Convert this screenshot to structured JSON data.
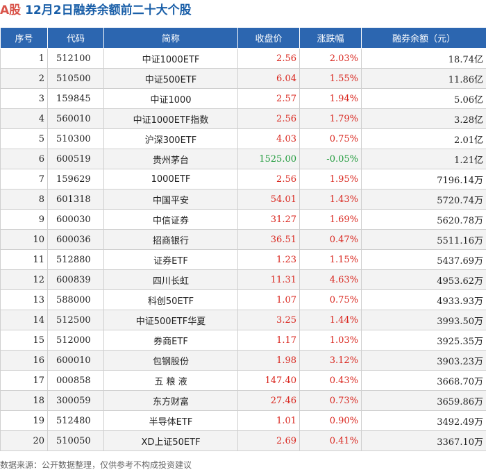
{
  "header": {
    "prefix": "A股",
    "title": "12月2日融券余额前二十大个股"
  },
  "columns": [
    "序号",
    "代码",
    "简称",
    "收盘价",
    "涨跌幅",
    "融券余额（元）"
  ],
  "rows": [
    {
      "idx": "1",
      "code": "512100",
      "name": "中证1000ETF",
      "price": "2.56",
      "change": "2.03%",
      "balance": "18.74亿",
      "dir": "up"
    },
    {
      "idx": "2",
      "code": "510500",
      "name": "中证500ETF",
      "price": "6.04",
      "change": "1.55%",
      "balance": "11.86亿",
      "dir": "up"
    },
    {
      "idx": "3",
      "code": "159845",
      "name": "中证1000",
      "price": "2.57",
      "change": "1.94%",
      "balance": "5.06亿",
      "dir": "up"
    },
    {
      "idx": "4",
      "code": "560010",
      "name": "中证1000ETF指数",
      "price": "2.56",
      "change": "1.79%",
      "balance": "3.28亿",
      "dir": "up"
    },
    {
      "idx": "5",
      "code": "510300",
      "name": "沪深300ETF",
      "price": "4.03",
      "change": "0.75%",
      "balance": "2.01亿",
      "dir": "up"
    },
    {
      "idx": "6",
      "code": "600519",
      "name": "贵州茅台",
      "price": "1525.00",
      "change": "-0.05%",
      "balance": "1.21亿",
      "dir": "down"
    },
    {
      "idx": "7",
      "code": "159629",
      "name": "1000ETF",
      "price": "2.56",
      "change": "1.95%",
      "balance": "7196.14万",
      "dir": "up"
    },
    {
      "idx": "8",
      "code": "601318",
      "name": "中国平安",
      "price": "54.01",
      "change": "1.43%",
      "balance": "5720.74万",
      "dir": "up"
    },
    {
      "idx": "9",
      "code": "600030",
      "name": "中信证券",
      "price": "31.27",
      "change": "1.69%",
      "balance": "5620.78万",
      "dir": "up"
    },
    {
      "idx": "10",
      "code": "600036",
      "name": "招商银行",
      "price": "36.51",
      "change": "0.47%",
      "balance": "5511.16万",
      "dir": "up"
    },
    {
      "idx": "11",
      "code": "512880",
      "name": "证券ETF",
      "price": "1.23",
      "change": "1.15%",
      "balance": "5437.69万",
      "dir": "up"
    },
    {
      "idx": "12",
      "code": "600839",
      "name": "四川长虹",
      "price": "11.31",
      "change": "4.63%",
      "balance": "4953.62万",
      "dir": "up"
    },
    {
      "idx": "13",
      "code": "588000",
      "name": "科创50ETF",
      "price": "1.07",
      "change": "0.75%",
      "balance": "4933.93万",
      "dir": "up"
    },
    {
      "idx": "14",
      "code": "512500",
      "name": "中证500ETF华夏",
      "price": "3.25",
      "change": "1.44%",
      "balance": "3993.50万",
      "dir": "up"
    },
    {
      "idx": "15",
      "code": "512000",
      "name": "券商ETF",
      "price": "1.17",
      "change": "1.03%",
      "balance": "3925.35万",
      "dir": "up"
    },
    {
      "idx": "16",
      "code": "600010",
      "name": "包钢股份",
      "price": "1.98",
      "change": "3.12%",
      "balance": "3903.23万",
      "dir": "up"
    },
    {
      "idx": "17",
      "code": "000858",
      "name": "五 粮 液",
      "price": "147.40",
      "change": "0.43%",
      "balance": "3668.70万",
      "dir": "up"
    },
    {
      "idx": "18",
      "code": "300059",
      "name": "东方财富",
      "price": "27.46",
      "change": "0.73%",
      "balance": "3659.86万",
      "dir": "up"
    },
    {
      "idx": "19",
      "code": "512480",
      "name": "半导体ETF",
      "price": "1.01",
      "change": "0.90%",
      "balance": "3492.49万",
      "dir": "up"
    },
    {
      "idx": "20",
      "code": "510050",
      "name": "XD上证50ETF",
      "price": "2.69",
      "change": "0.41%",
      "balance": "3367.10万",
      "dir": "up"
    }
  ],
  "footer": "数据来源：公开数据整理，仅供参考不构成投资建议",
  "colors": {
    "header_bg": "#2c66b0",
    "title": "#1a5fa8",
    "up": "#d9251d",
    "down": "#1e9a3a"
  }
}
